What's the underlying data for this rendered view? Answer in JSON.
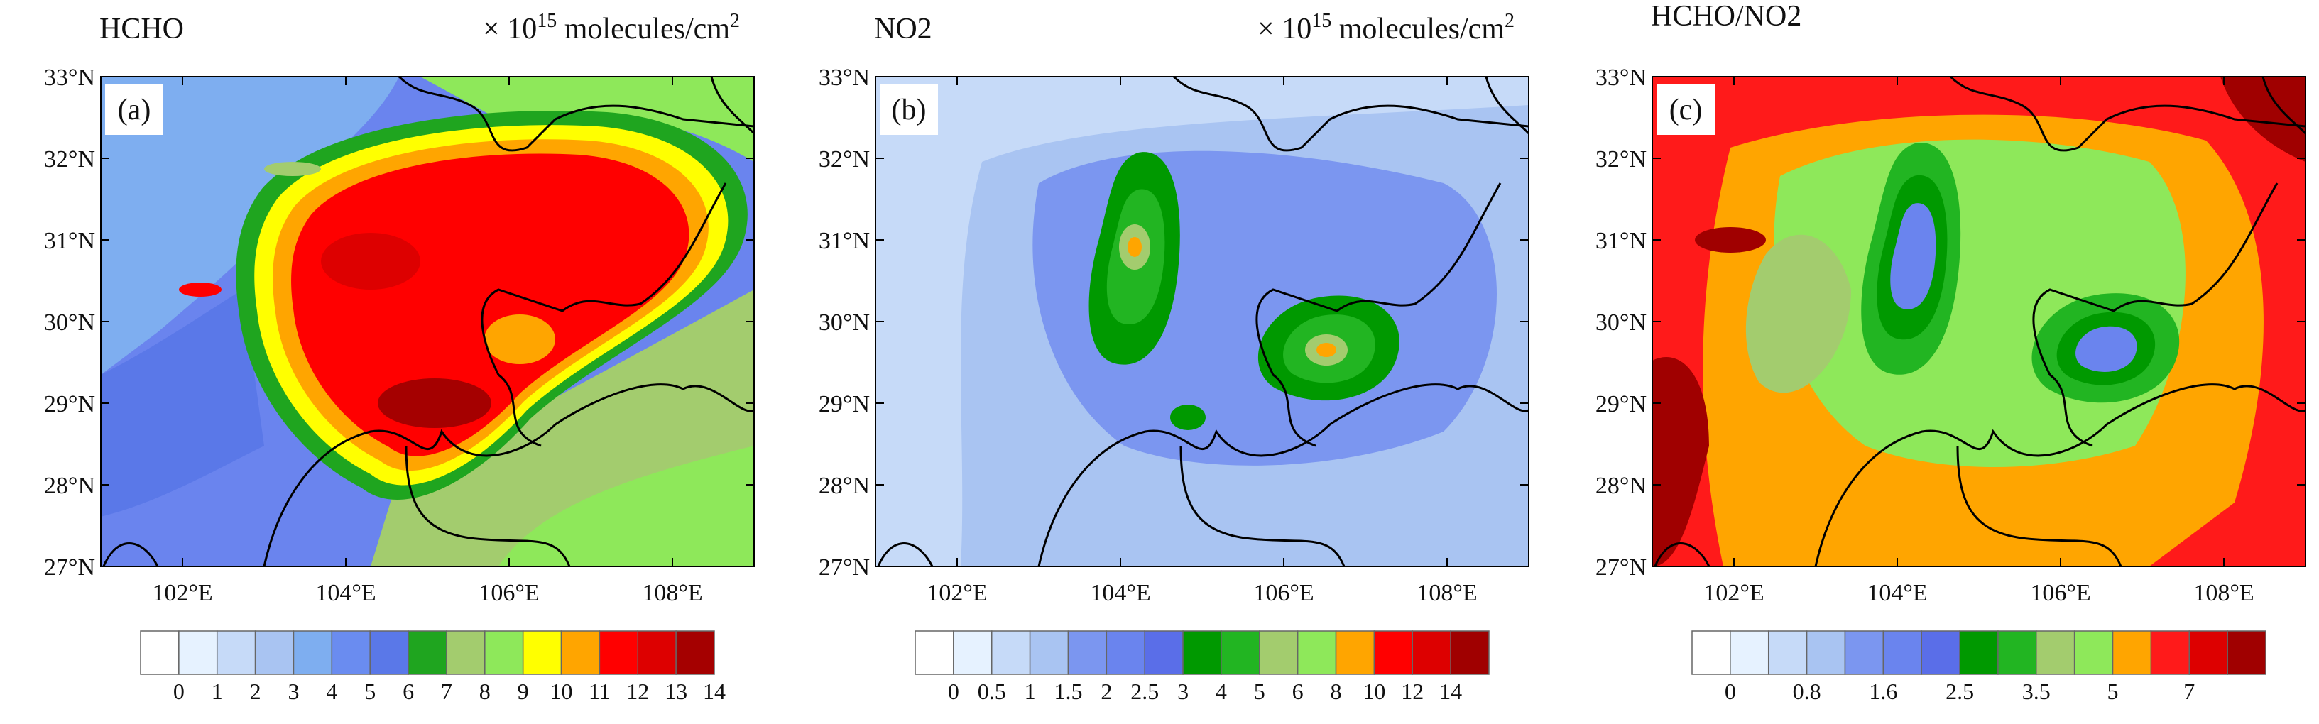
{
  "panels": [
    {
      "title": "HCHO",
      "label": "(a)",
      "unit": {
        "prefix": "× 10",
        "exponent": "15",
        "text": " molecules/cm",
        "power": "2"
      },
      "lon_range": [
        101,
        109
      ],
      "lat_range": [
        27,
        33
      ],
      "lat_ticks": [
        {
          "value": 33,
          "label": "33°N"
        },
        {
          "value": 32,
          "label": "32°N"
        },
        {
          "value": 31,
          "label": "31°N"
        },
        {
          "value": 30,
          "label": "30°N"
        },
        {
          "value": 29,
          "label": "29°N"
        },
        {
          "value": 28,
          "label": "28°N"
        },
        {
          "value": 27,
          "label": "27°N"
        }
      ],
      "lon_ticks": [
        {
          "value": 102,
          "label": "102°E"
        },
        {
          "value": 104,
          "label": "104°E"
        },
        {
          "value": 106,
          "label": "106°E"
        },
        {
          "value": 108,
          "label": "108°E"
        }
      ],
      "colorbar": {
        "colors": [
          "#ffffff",
          "#e6f2ff",
          "#c6daf8",
          "#a9c4f2",
          "#7eaef0",
          "#6a8cf0",
          "#5a78e8",
          "#1fa51f",
          "#a3cc6e",
          "#8ee85a",
          "#ffff00",
          "#ffa500",
          "#ff0000",
          "#dd0000",
          "#a50000"
        ],
        "labels": [
          "0",
          "1",
          "2",
          "3",
          "4",
          "5",
          "6",
          "7",
          "8",
          "9",
          "10",
          "11",
          "12",
          "13",
          "14"
        ]
      }
    },
    {
      "title": "NO2",
      "label": "(b)",
      "unit": {
        "prefix": "× 10",
        "exponent": "15",
        "text": " molecules/cm",
        "power": "2"
      },
      "lon_range": [
        101,
        109
      ],
      "lat_range": [
        27,
        33
      ],
      "lat_ticks": [
        {
          "value": 33,
          "label": "33°N"
        },
        {
          "value": 32,
          "label": "32°N"
        },
        {
          "value": 31,
          "label": "31°N"
        },
        {
          "value": 30,
          "label": "30°N"
        },
        {
          "value": 29,
          "label": "29°N"
        },
        {
          "value": 28,
          "label": "28°N"
        },
        {
          "value": 27,
          "label": "27°N"
        }
      ],
      "lon_ticks": [
        {
          "value": 102,
          "label": "102°E"
        },
        {
          "value": 104,
          "label": "104°E"
        },
        {
          "value": 106,
          "label": "106°E"
        },
        {
          "value": 108,
          "label": "108°E"
        }
      ],
      "colorbar": {
        "colors": [
          "#ffffff",
          "#e6f2ff",
          "#c6daf8",
          "#a9c4f2",
          "#7b96f0",
          "#6a84ee",
          "#5a6ee8",
          "#009900",
          "#22b522",
          "#a3cc6e",
          "#8ee85a",
          "#ffa500",
          "#ff0000",
          "#dd0000",
          "#a00000"
        ],
        "labels": [
          "0",
          "0.5",
          "1",
          "1.5",
          "2",
          "2.5",
          "3",
          "4",
          "5",
          "6",
          "8",
          "10",
          "12",
          "14"
        ]
      }
    },
    {
      "title": "HCHO/NO2",
      "label": "(c)",
      "lon_range": [
        101,
        109
      ],
      "lat_range": [
        27,
        33
      ],
      "lat_ticks": [
        {
          "value": 33,
          "label": "33°N"
        },
        {
          "value": 32,
          "label": "32°N"
        },
        {
          "value": 31,
          "label": "31°N"
        },
        {
          "value": 30,
          "label": "30°N"
        },
        {
          "value": 29,
          "label": "29°N"
        },
        {
          "value": 28,
          "label": "28°N"
        },
        {
          "value": 27,
          "label": "27°N"
        }
      ],
      "lon_ticks": [
        {
          "value": 102,
          "label": "102°E"
        },
        {
          "value": 104,
          "label": "104°E"
        },
        {
          "value": 106,
          "label": "106°E"
        },
        {
          "value": 108,
          "label": "108°E"
        }
      ],
      "colorbar": {
        "colors": [
          "#ffffff",
          "#e6f2ff",
          "#c6daf8",
          "#a9c4f2",
          "#7b96f0",
          "#6a84ee",
          "#5a6ee8",
          "#009900",
          "#22b522",
          "#a3cc6e",
          "#8ee85a",
          "#ffa500",
          "#ff1a1a",
          "#dd0000",
          "#a00000"
        ],
        "labels": [
          "0",
          null,
          "0.8",
          null,
          "1.6",
          null,
          "2.5",
          null,
          "3.5",
          null,
          "5",
          null,
          "7",
          null
        ]
      }
    }
  ]
}
